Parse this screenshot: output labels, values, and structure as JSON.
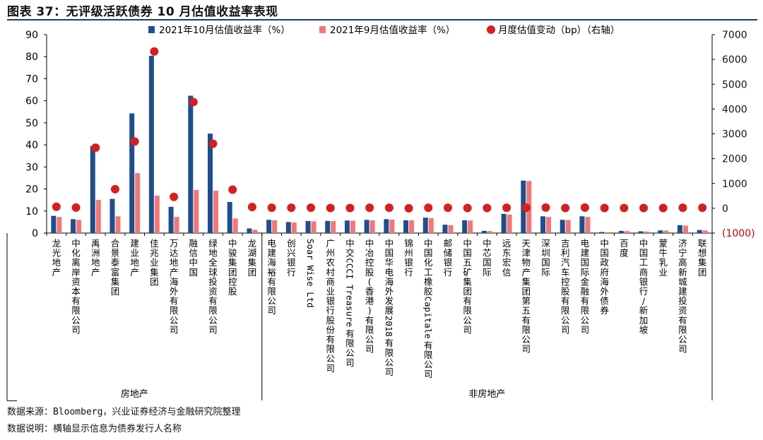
{
  "title": "图表 37：无评级活跃债券 10 月估值收益率表现",
  "footnotes": {
    "source": "数据来源：Bloomberg，兴业证券经济与金融研究院整理",
    "note": "数据说明：横轴显示信息为债券发行人名称"
  },
  "colors": {
    "oct": "#1f4e8c",
    "sep": "#f07878",
    "change": "#d61f1f"
  },
  "chart_data": {
    "type": "bar",
    "categories": [
      "龙光地产",
      "中化离岸资本有限公司",
      "禹洲地产",
      "合景泰富集团",
      "建业地产",
      "佳兆业集团",
      "万达地产海外有限公司",
      "融信中国",
      "绿地全球投资有限公司",
      "中骏集团控股",
      "龙湖集团",
      "电建海裕有限公司",
      "创兴银行",
      "Soar Wise Ltd",
      "广州农村商业银行股份有限公司",
      "中交CCCI Treasure有限公司",
      "中冶控股(香港)有限公司",
      "中国华电海外发展2018有限公司",
      "锦州银行",
      "中国化工橡胶Capitale有限公司",
      "邮储银行",
      "中国五矿集团有限公司",
      "中芯国际",
      "远东宏信",
      "天津物产集团第五有限公司",
      "深圳国际",
      "吉利汽车控股有限公司",
      "电建国际金融有限公司",
      "中国政府海外债券",
      "百度",
      "中国工商银行/新加坡",
      "蒙牛乳业",
      "济宁高新城建投资有限公司",
      "联想集团"
    ],
    "series": [
      {
        "name": "2021年10月估值收益率（%）",
        "type": "bar",
        "axis": "left",
        "values": [
          7.8,
          6.3,
          39.5,
          15.5,
          54.3,
          80.4,
          11.9,
          62.3,
          45.1,
          14.1,
          2.1,
          6.0,
          5.0,
          5.5,
          5.5,
          5.7,
          6.0,
          6.3,
          5.8,
          7.0,
          3.8,
          5.8,
          1.0,
          8.7,
          23.8,
          7.6,
          6.0,
          7.6,
          0.5,
          1.0,
          0.8,
          1.2,
          3.6,
          1.4
        ]
      },
      {
        "name": "2021年9月估值收益率（%）",
        "type": "bar",
        "axis": "left",
        "values": [
          7.3,
          6.0,
          15.0,
          7.6,
          27.2,
          17.0,
          7.3,
          19.6,
          19.2,
          6.6,
          1.5,
          5.8,
          4.8,
          5.3,
          5.4,
          5.6,
          5.8,
          6.1,
          5.8,
          6.8,
          3.6,
          5.7,
          0.9,
          8.4,
          23.6,
          7.3,
          5.9,
          7.3,
          0.4,
          0.9,
          0.7,
          1.1,
          3.4,
          1.2
        ]
      },
      {
        "name": "月度估值变动（bp）（右轴）",
        "type": "scatter",
        "axis": "right",
        "values": [
          60,
          30,
          2440,
          770,
          2690,
          6320,
          460,
          4280,
          2600,
          750,
          50,
          20,
          20,
          20,
          10,
          10,
          20,
          20,
          0,
          20,
          20,
          10,
          10,
          20,
          20,
          30,
          10,
          30,
          10,
          10,
          10,
          10,
          20,
          20
        ]
      }
    ],
    "groups": [
      {
        "label": "房地产",
        "from": 0,
        "to": 10
      },
      {
        "label": "非房地产",
        "from": 11,
        "to": 33
      }
    ],
    "y_left": {
      "min": 0,
      "max": 90,
      "ticks": [
        "0",
        "10",
        "20",
        "30",
        "40",
        "50",
        "60",
        "70",
        "80",
        "90"
      ]
    },
    "y_right": {
      "min": -1000,
      "max": 7000,
      "ticks": [
        "(1000)",
        "0",
        "1000",
        "2000",
        "3000",
        "4000",
        "5000",
        "6000",
        "7000"
      ]
    },
    "legend_position": "top"
  }
}
